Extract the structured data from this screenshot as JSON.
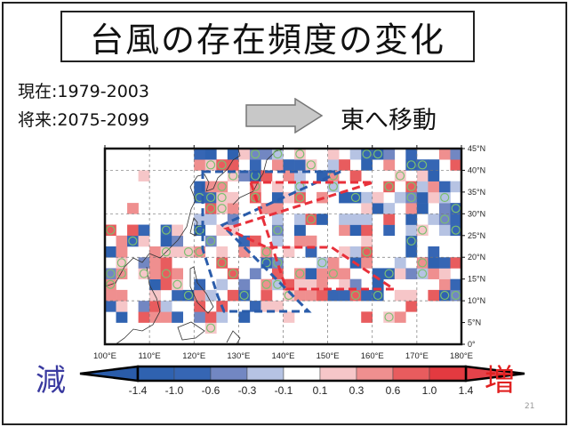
{
  "slide": {
    "title": "台風の存在頻度の変化",
    "present": "現在:1979-2003",
    "future": "将来:2075-2099",
    "move_label": "東へ移動",
    "decrease_label": "減",
    "increase_label": "増",
    "page_number": "21"
  },
  "map": {
    "lon_ticks": [
      "100°E",
      "110°E",
      "120°E",
      "130°E",
      "140°E",
      "150°E",
      "160°E",
      "170°E",
      "180°E"
    ],
    "lat_ticks": [
      "0°",
      "5°N",
      "10°N",
      "15°N",
      "20°N",
      "25°N",
      "30°N",
      "35°N",
      "40°N",
      "45°N"
    ],
    "colorbar": {
      "labels": [
        "-1.4",
        "-1.0",
        "-0.6",
        "-0.3",
        "-0.1",
        "0.1",
        "0.3",
        "0.6",
        "1.0",
        "1.4"
      ],
      "colors": [
        "#2a5caa",
        "#2f62b0",
        "#3666b4",
        "#7287c2",
        "#b6c3e3",
        "#ffffff",
        "#f6c6c8",
        "#ef8f8f",
        "#e85c5e",
        "#e33a40",
        "#e4424a"
      ]
    },
    "colors": {
      "decrease": "#3a3aa0",
      "increase": "#e02020",
      "blue_box": "#2a5caa",
      "red_box": "#e8303a",
      "circle": "#7cc070"
    }
  }
}
